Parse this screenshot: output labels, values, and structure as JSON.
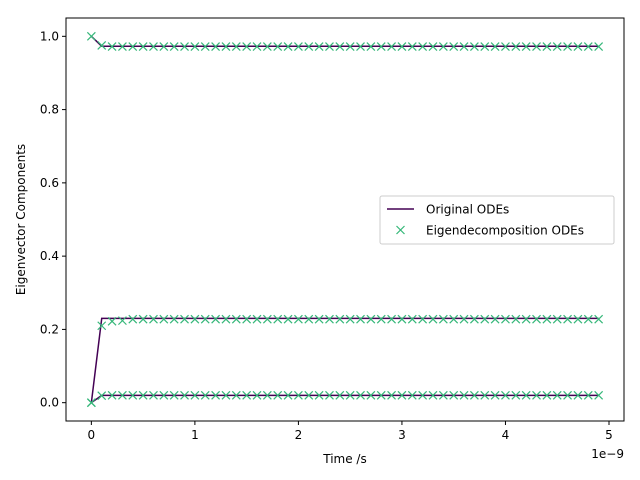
{
  "chart_data": {
    "type": "line",
    "title": "",
    "xlabel": "Time /s",
    "ylabel": "Eigenvector Components",
    "x_offset_label": "1e−9",
    "xlim": [
      -2.45e-10,
      5.145e-09
    ],
    "ylim": [
      -0.05,
      1.05
    ],
    "x_ticks": [
      0,
      1e-09,
      2e-09,
      3e-09,
      4e-09,
      5e-09
    ],
    "x_tick_labels": [
      "0",
      "1",
      "2",
      "3",
      "4",
      "5"
    ],
    "y_ticks": [
      0.0,
      0.2,
      0.4,
      0.6,
      0.8,
      1.0
    ],
    "y_tick_labels": [
      "0.0",
      "0.2",
      "0.4",
      "0.6",
      "0.8",
      "1.0"
    ],
    "grid": false,
    "legend_position": "center-right",
    "x": [
      0,
      1e-10,
      2e-10,
      3e-10,
      4e-10,
      5e-10,
      6e-10,
      7e-10,
      8e-10,
      9e-10,
      1e-09,
      1.1e-09,
      1.2e-09,
      1.3e-09,
      1.4e-09,
      1.5e-09,
      1.6e-09,
      1.7e-09,
      1.8e-09,
      1.9e-09,
      2e-09,
      2.1e-09,
      2.2e-09,
      2.3e-09,
      2.4e-09,
      2.5e-09,
      2.6e-09,
      2.7e-09,
      2.8e-09,
      2.9e-09,
      3e-09,
      3.1e-09,
      3.2e-09,
      3.3e-09,
      3.4e-09,
      3.5e-09,
      3.6e-09,
      3.7e-09,
      3.8e-09,
      3.9e-09,
      4e-09,
      4.1e-09,
      4.2e-09,
      4.3e-09,
      4.4e-09,
      4.5e-09,
      4.6e-09,
      4.7e-09,
      4.8e-09,
      4.9e-09
    ],
    "series": [
      {
        "name": "Original ODEs",
        "style": "line",
        "color": "#440154",
        "components": [
          {
            "start": 1.0,
            "value": 0.973
          },
          {
            "start": 0.0,
            "value": 0.23
          },
          {
            "start": 0.0,
            "value": 0.02
          }
        ]
      },
      {
        "name": "Eigendecomposition ODEs",
        "style": "marker-x",
        "color": "#35b779",
        "components": [
          {
            "start": 1.0,
            "value": 0.972,
            "second": 0.975
          },
          {
            "start": 0.0,
            "value": 0.228,
            "second": 0.21,
            "third": 0.222,
            "fourth": 0.224
          },
          {
            "start": 0.0,
            "value": 0.02,
            "second": 0.019
          }
        ]
      }
    ]
  }
}
